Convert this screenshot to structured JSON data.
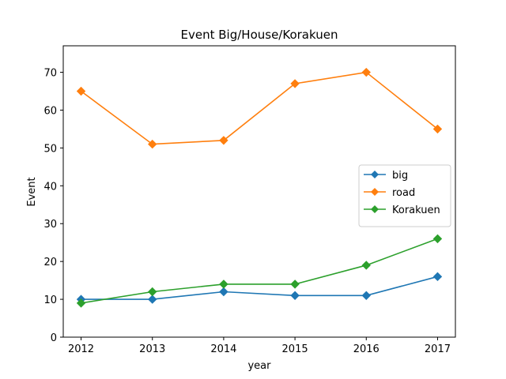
{
  "chart_data": {
    "type": "line",
    "title": "Event Big/House/Korakuen",
    "xlabel": "year",
    "ylabel": "Event",
    "x": [
      2012,
      2013,
      2014,
      2015,
      2016,
      2017
    ],
    "xticks": [
      "2012",
      "2013",
      "2014",
      "2015",
      "2016",
      "2017"
    ],
    "yticks": [
      "0",
      "10",
      "20",
      "30",
      "40",
      "50",
      "60",
      "70"
    ],
    "ylim": [
      0,
      77
    ],
    "xlim": [
      2011.75,
      2017.25
    ],
    "grid": false,
    "legend_position": "center-right",
    "marker": "diamond",
    "series": [
      {
        "name": "big",
        "color": "#1f77b4",
        "values": [
          10,
          10,
          12,
          11,
          11,
          16
        ]
      },
      {
        "name": "road",
        "color": "#ff7f0e",
        "values": [
          65,
          51,
          52,
          67,
          70,
          55
        ]
      },
      {
        "name": "Korakuen",
        "color": "#2ca02c",
        "values": [
          9,
          12,
          14,
          14,
          19,
          26
        ]
      }
    ]
  }
}
